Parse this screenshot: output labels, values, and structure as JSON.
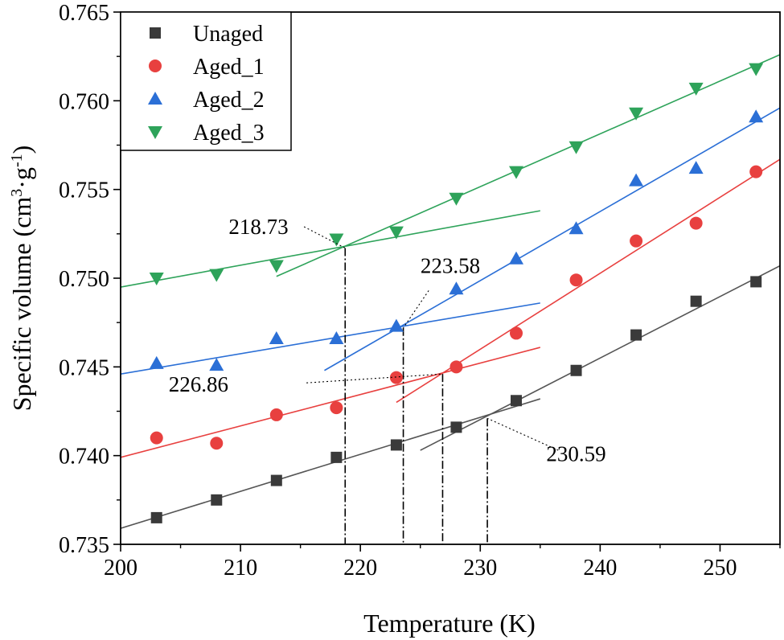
{
  "chart_data": {
    "type": "scatter",
    "xlabel": "Temperature (K)",
    "ylabel": {
      "main": "Specific volume (cm",
      "sup1": "3",
      "mid": "·g",
      "sup2": "-1",
      "end": ")"
    },
    "xlim": [
      200,
      255
    ],
    "ylim": [
      0.735,
      0.765
    ],
    "x_ticks": [
      {
        "value": 200,
        "label": "200"
      },
      {
        "value": 210,
        "label": "210"
      },
      {
        "value": 220,
        "label": "220"
      },
      {
        "value": 230,
        "label": "230"
      },
      {
        "value": 240,
        "label": "240"
      },
      {
        "value": 250,
        "label": "250"
      }
    ],
    "y_ticks": [
      {
        "value": 0.735,
        "label": "0.735"
      },
      {
        "value": 0.74,
        "label": "0.740"
      },
      {
        "value": 0.745,
        "label": "0.745"
      },
      {
        "value": 0.75,
        "label": "0.750"
      },
      {
        "value": 0.755,
        "label": "0.755"
      },
      {
        "value": 0.76,
        "label": "0.760"
      },
      {
        "value": 0.765,
        "label": "0.765"
      }
    ],
    "legend_position": "top-left",
    "series": [
      {
        "name": "Unaged",
        "marker": "square",
        "color": "#3a3a3a",
        "line_color": "#555555",
        "x": [
          203,
          208,
          213,
          218,
          223,
          228,
          233,
          238,
          243,
          248,
          253
        ],
        "y": [
          0.7365,
          0.7375,
          0.7386,
          0.7399,
          0.7406,
          0.7416,
          0.7431,
          0.7448,
          0.7468,
          0.7487,
          0.7498
        ],
        "fits": [
          {
            "x0": 200,
            "x1": 235,
            "y0": 0.7359,
            "y1": 0.7432
          },
          {
            "x0": 225,
            "x1": 255,
            "y0": 0.7403,
            "y1": 0.7507
          }
        ]
      },
      {
        "name": "Aged_1",
        "marker": "circle",
        "color": "#e8403f",
        "line_color": "#e8403f",
        "x": [
          203,
          208,
          213,
          218,
          223,
          228,
          233,
          238,
          243,
          248,
          253
        ],
        "y": [
          0.741,
          0.7407,
          0.7423,
          0.7427,
          0.7444,
          0.745,
          0.7469,
          0.7499,
          0.7521,
          0.7531,
          0.756
        ],
        "fits": [
          {
            "x0": 200,
            "x1": 235,
            "y0": 0.7399,
            "y1": 0.7461
          },
          {
            "x0": 223,
            "x1": 255,
            "y0": 0.743,
            "y1": 0.7567
          }
        ]
      },
      {
        "name": "Aged_2",
        "marker": "triangle-up",
        "color": "#2b6fd6",
        "line_color": "#2b6fd6",
        "x": [
          203,
          208,
          213,
          218,
          223,
          228,
          233,
          238,
          243,
          248,
          253
        ],
        "y": [
          0.7452,
          0.7451,
          0.7466,
          0.7466,
          0.7473,
          0.7494,
          0.7511,
          0.7528,
          0.7555,
          0.7562,
          0.7591
        ],
        "fits": [
          {
            "x0": 200,
            "x1": 235,
            "y0": 0.7446,
            "y1": 0.7486
          },
          {
            "x0": 217,
            "x1": 255,
            "y0": 0.7448,
            "y1": 0.7596
          }
        ]
      },
      {
        "name": "Aged_3",
        "marker": "triangle-down",
        "color": "#2ea35a",
        "line_color": "#2ea35a",
        "x": [
          203,
          208,
          213,
          218,
          223,
          228,
          233,
          238,
          243,
          248,
          253
        ],
        "y": [
          0.75,
          0.7502,
          0.7507,
          0.7522,
          0.7526,
          0.7545,
          0.756,
          0.7574,
          0.7593,
          0.7607,
          0.7618
        ],
        "fits": [
          {
            "x0": 200,
            "x1": 235,
            "y0": 0.7495,
            "y1": 0.7538
          },
          {
            "x0": 213,
            "x1": 255,
            "y0": 0.7501,
            "y1": 0.7626
          }
        ]
      }
    ],
    "annotations": [
      {
        "label": "218.73",
        "x": 218.73,
        "y": 0.7517,
        "text_x": 211.5,
        "text_y": 0.7525,
        "leader_from_x": 215.3,
        "leader_from_y": 0.7529
      },
      {
        "label": "223.58",
        "x": 223.58,
        "y": 0.7472,
        "text_x": 227.5,
        "text_y": 0.7503,
        "leader_from_x": 225.7,
        "leader_from_y": 0.7493
      },
      {
        "label": "226.86",
        "x": 226.86,
        "y": 0.7446,
        "text_x": 206.5,
        "text_y": 0.7436,
        "leader_from_x": 215.5,
        "leader_from_y": 0.7441
      },
      {
        "label": "230.59",
        "x": 230.59,
        "y": 0.7421,
        "text_x": 238,
        "text_y": 0.7397,
        "leader_from_x": 236.5,
        "leader_from_y": 0.7403
      }
    ]
  }
}
